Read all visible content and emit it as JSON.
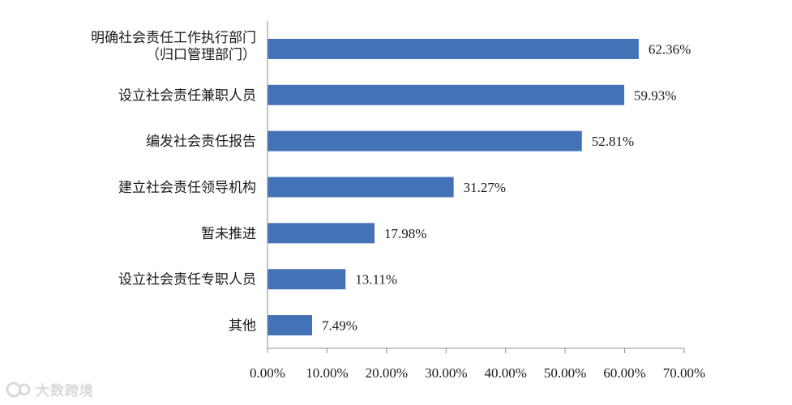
{
  "chart_data": {
    "type": "bar",
    "orientation": "horizontal",
    "categories": [
      [
        "明确社会责任工作执行部门",
        "（归口管理部门）"
      ],
      [
        "设立社会责任兼职人员"
      ],
      [
        "编发社会责任报告"
      ],
      [
        "建立社会责任领导机构"
      ],
      [
        "暂未推进"
      ],
      [
        "设立社会责任专职人员"
      ],
      [
        "其他"
      ]
    ],
    "values": [
      62.36,
      59.93,
      52.81,
      31.27,
      17.98,
      13.11,
      7.49
    ],
    "value_labels": [
      "62.36%",
      "59.93%",
      "52.81%",
      "31.27%",
      "17.98%",
      "13.11%",
      "7.49%"
    ],
    "xlim": [
      0,
      70
    ],
    "xticks": [
      0,
      10,
      20,
      30,
      40,
      50,
      60,
      70
    ],
    "xtick_labels": [
      "0.00%",
      "10.00%",
      "20.00%",
      "30.00%",
      "40.00%",
      "50.00%",
      "60.00%",
      "70.00%"
    ],
    "bar_color": "#4472b6",
    "grid": false,
    "legend": "none"
  },
  "watermark": {
    "text": "大数跨境"
  }
}
